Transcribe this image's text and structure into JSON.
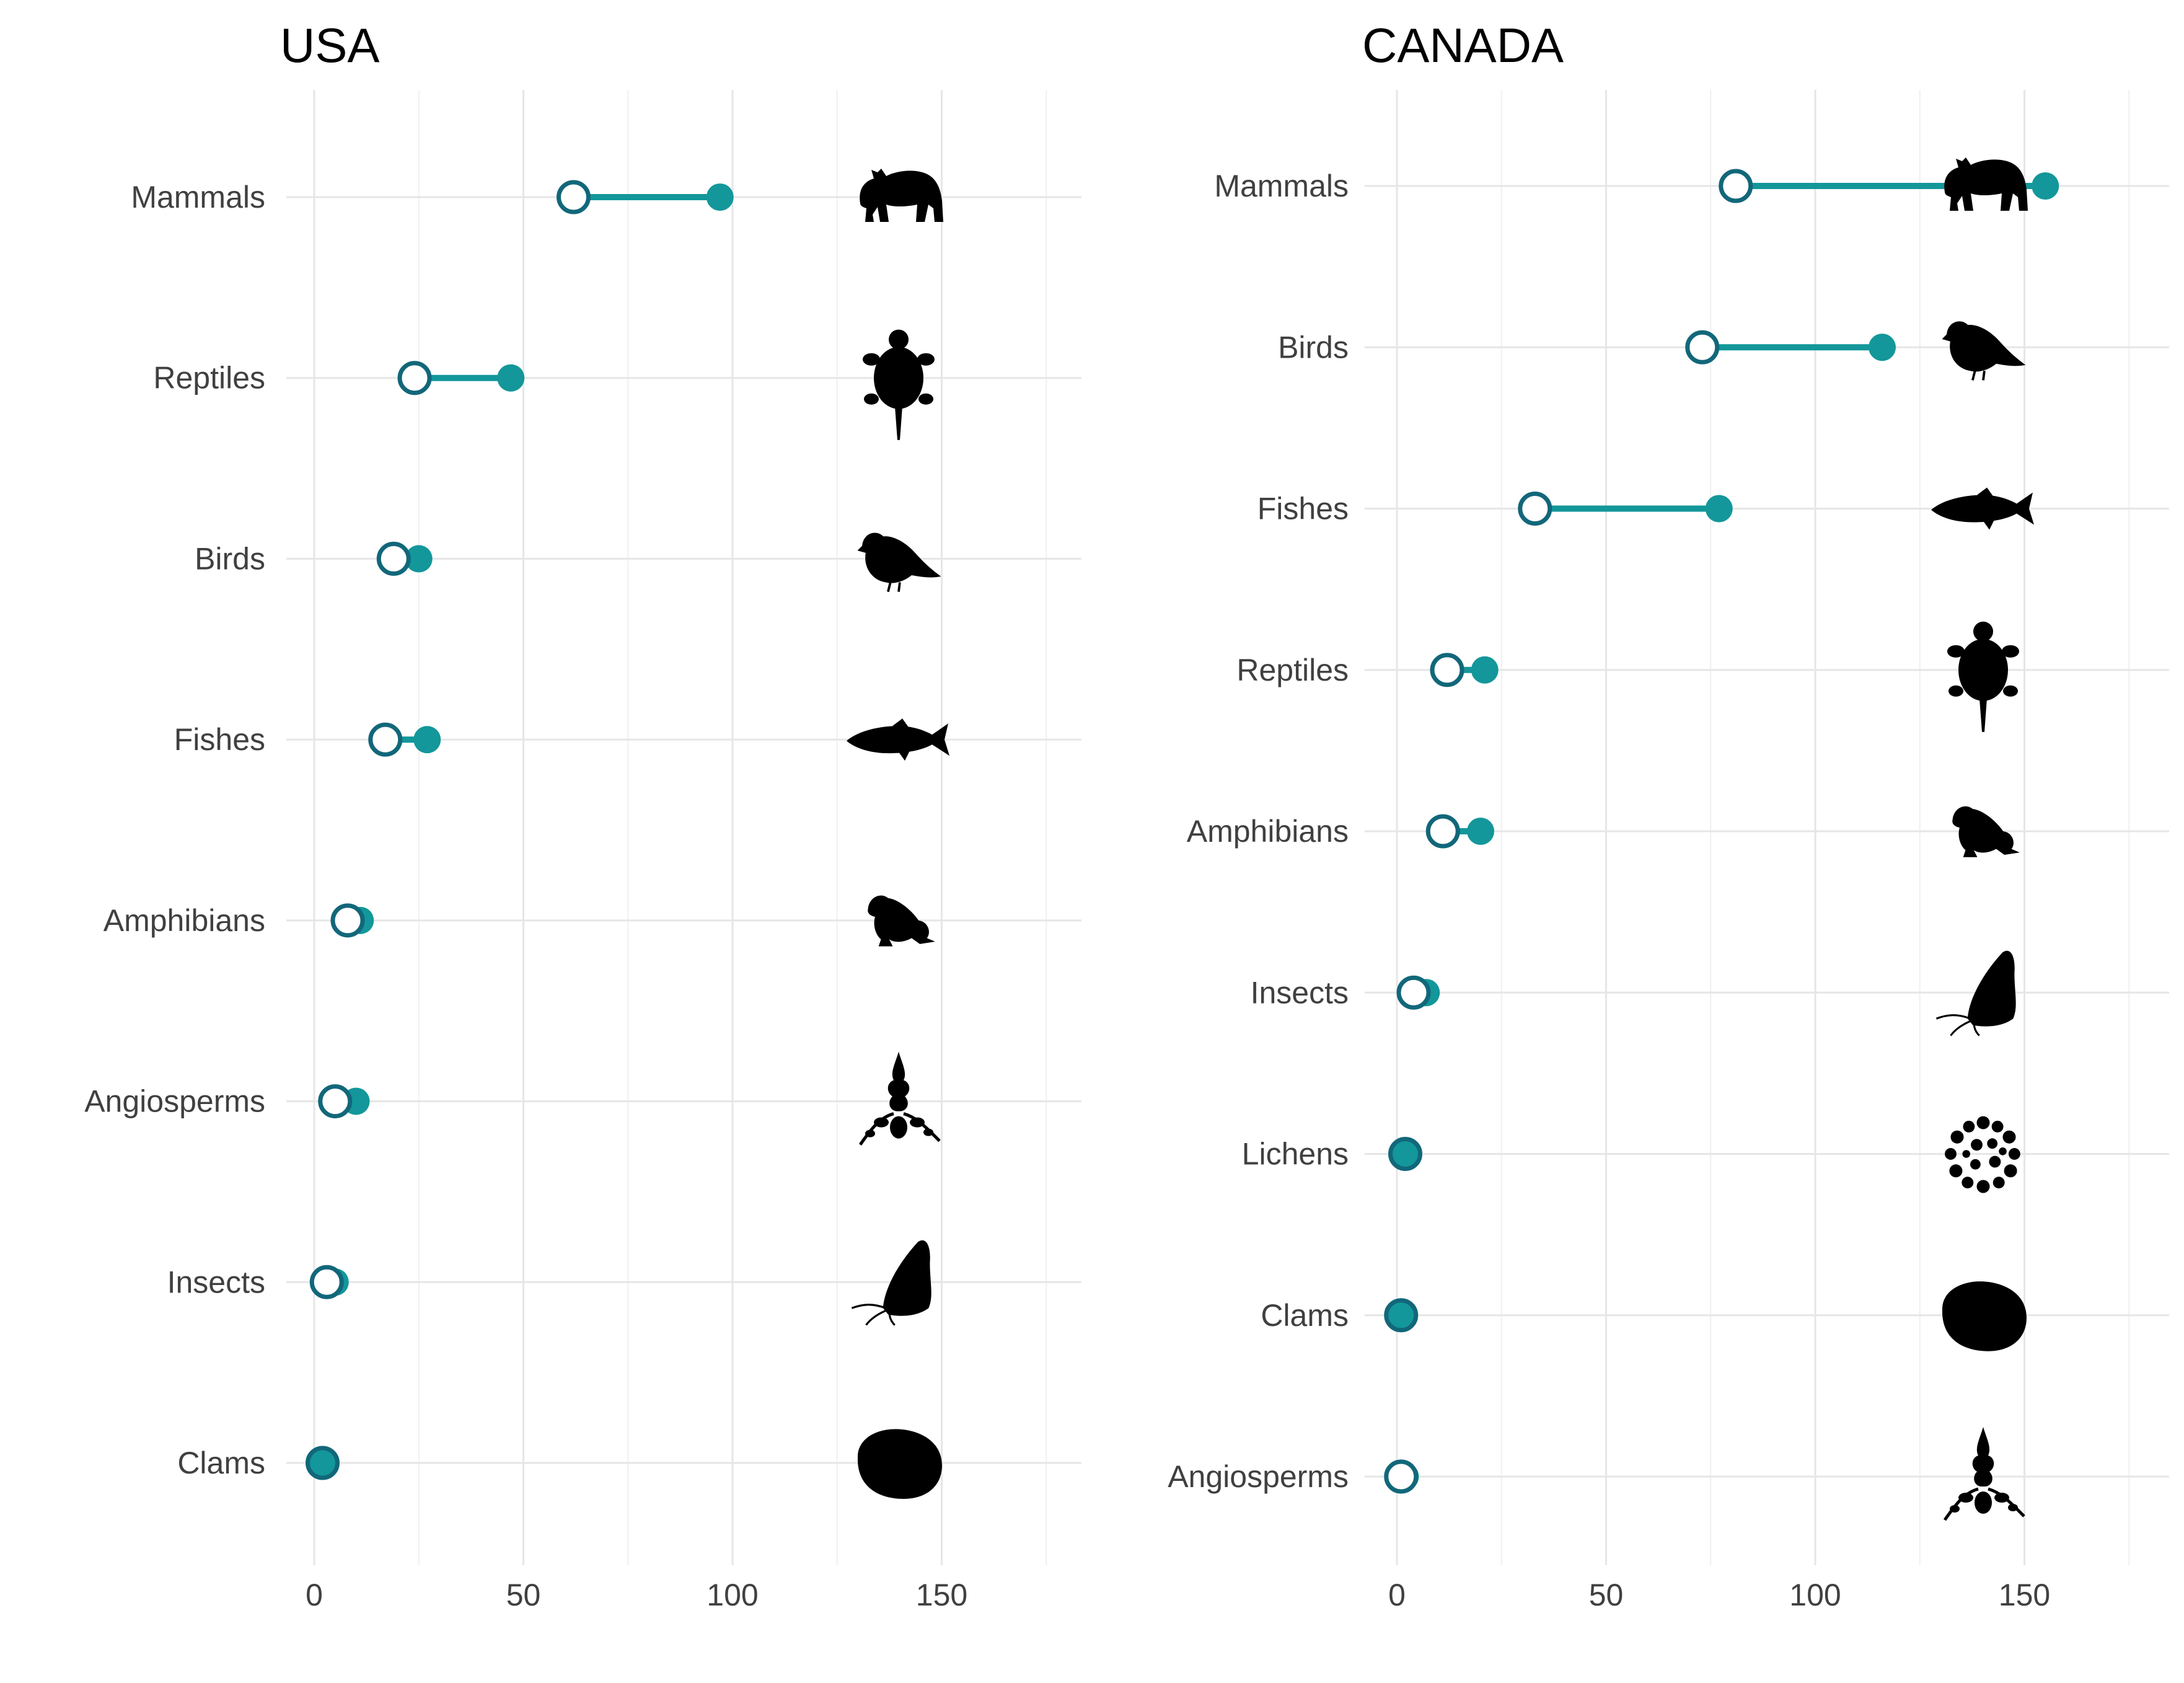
{
  "colors": {
    "accent": "#13979a",
    "ring": "#12677a",
    "silhouette": "#000000"
  },
  "chart_data": [
    {
      "type": "dumbbell",
      "title": "USA",
      "xlim": [
        -10,
        185
      ],
      "xticks": [
        0,
        50,
        100,
        150
      ],
      "grid": true,
      "rows": [
        {
          "category": "Mammals",
          "start": 62,
          "end": 97,
          "icon": "bear-icon"
        },
        {
          "category": "Reptiles",
          "start": 24,
          "end": 47,
          "icon": "turtle-icon"
        },
        {
          "category": "Birds",
          "start": 19,
          "end": 25,
          "icon": "bird-icon"
        },
        {
          "category": "Fishes",
          "start": 17,
          "end": 27,
          "icon": "fish-icon"
        },
        {
          "category": "Amphibians",
          "start": 8,
          "end": 11,
          "icon": "frog-icon"
        },
        {
          "category": "Angiosperms",
          "start": 5,
          "end": 10,
          "icon": "flower-icon"
        },
        {
          "category": "Insects",
          "start": 3,
          "end": 5,
          "icon": "butterfly-icon"
        },
        {
          "category": "Clams",
          "start": 2,
          "end": 2,
          "icon": "clam-icon"
        }
      ]
    },
    {
      "type": "dumbbell",
      "title": "CANADA",
      "xlim": [
        -10,
        185
      ],
      "xticks": [
        0,
        50,
        100,
        150
      ],
      "grid": true,
      "rows": [
        {
          "category": "Mammals",
          "start": 81,
          "end": 155,
          "icon": "bear-icon"
        },
        {
          "category": "Birds",
          "start": 73,
          "end": 116,
          "icon": "bird-icon"
        },
        {
          "category": "Fishes",
          "start": 33,
          "end": 77,
          "icon": "fish-icon"
        },
        {
          "category": "Reptiles",
          "start": 12,
          "end": 21,
          "icon": "turtle-icon"
        },
        {
          "category": "Amphibians",
          "start": 11,
          "end": 20,
          "icon": "frog-icon"
        },
        {
          "category": "Insects",
          "start": 4,
          "end": 7,
          "icon": "butterfly-icon"
        },
        {
          "category": "Lichens",
          "start": 2,
          "end": 2,
          "icon": "lichen-icon"
        },
        {
          "category": "Clams",
          "start": 1,
          "end": 1,
          "icon": "clam-icon"
        },
        {
          "category": "Angiosperms",
          "start": 1,
          "end": 2,
          "icon": "flower-icon"
        }
      ]
    }
  ]
}
